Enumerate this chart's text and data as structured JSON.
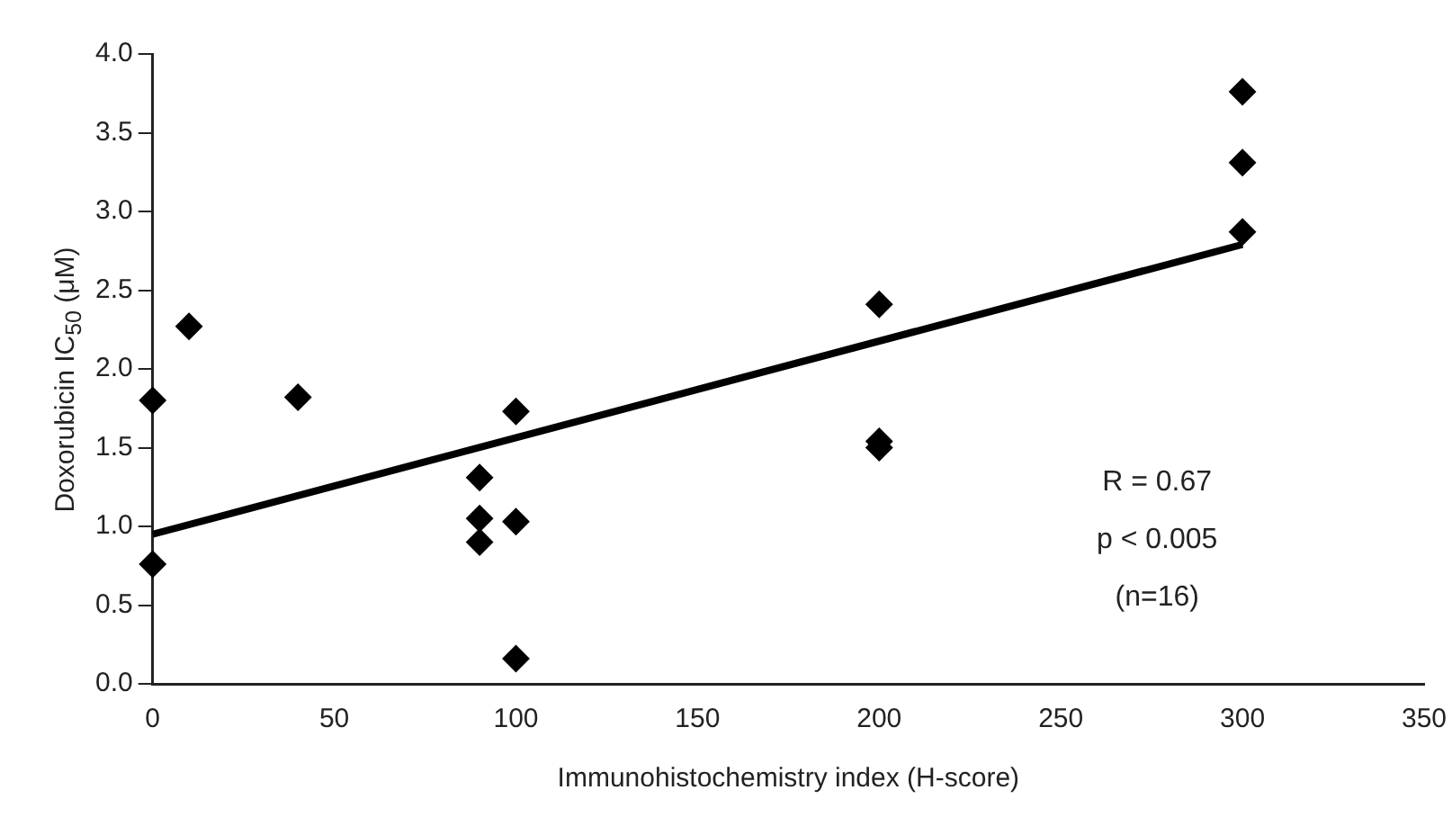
{
  "chart_data": {
    "type": "scatter",
    "xlabel": "Immunohistochemistry index (H-score)",
    "ylabel": "Doxorubicin IC$_{50}$ (μM)",
    "xlim": [
      0,
      350
    ],
    "xticks": [
      0,
      50,
      100,
      150,
      200,
      250,
      300,
      350
    ],
    "ylim": [
      0,
      4
    ],
    "yticks": [
      {
        "value": 0,
        "label": "0.0"
      },
      {
        "value": 0.5,
        "label": "0.5"
      },
      {
        "value": 1,
        "label": "1.0"
      },
      {
        "value": 1.5,
        "label": "1.5"
      },
      {
        "value": 2,
        "label": "2.0"
      },
      {
        "value": 2.5,
        "label": "2.5"
      },
      {
        "value": 3,
        "label": "3.0"
      },
      {
        "value": 3.5,
        "label": "3.5"
      },
      {
        "value": 4,
        "label": "4.0"
      }
    ],
    "grid": false,
    "legend": false,
    "marker": "diamond",
    "series": [
      {
        "color": "#000000",
        "x": [
          0,
          0,
          10,
          40,
          90,
          90,
          90,
          100,
          100,
          100,
          200,
          200,
          200,
          300,
          300,
          300
        ],
        "values": [
          1.8,
          0.76,
          2.27,
          1.82,
          1.31,
          1.05,
          0.9,
          1.73,
          1.03,
          0.16,
          2.41,
          1.54,
          1.5,
          3.76,
          3.31,
          2.87
        ]
      },
      {
        "type": "line",
        "color": "#000000",
        "marker": "none",
        "x": [
          0,
          300
        ],
        "values": [
          0.95,
          2.79
        ]
      }
    ],
    "annotations": [
      "R = 0.67",
      "p < 0.005",
      "(n=16)"
    ]
  }
}
